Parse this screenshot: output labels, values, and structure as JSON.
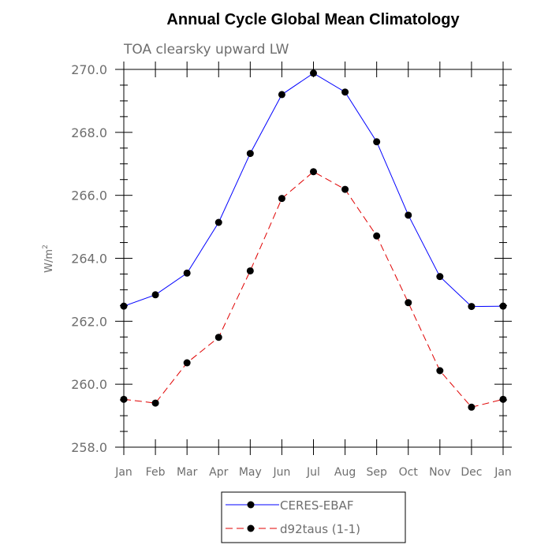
{
  "chart_data": {
    "type": "line",
    "title": "Annual Cycle Global Mean Climatology",
    "subtitle": "TOA clearsky upward LW",
    "ylabel": "W/m",
    "ylabel_superscript": "2",
    "xlabel": "",
    "categories": [
      "Jan",
      "Feb",
      "Mar",
      "Apr",
      "May",
      "Jun",
      "Jul",
      "Aug",
      "Sep",
      "Oct",
      "Nov",
      "Dec",
      "Jan"
    ],
    "ylim": [
      258.0,
      270.0
    ],
    "yticks": [
      "258.0",
      "260.0",
      "262.0",
      "264.0",
      "266.0",
      "268.0",
      "270.0"
    ],
    "grid": false,
    "legend_position": "bottom-center",
    "series": [
      {
        "name": "CERES-EBAF",
        "color": "#0000ff",
        "line_style": "solid",
        "marker": "filled-circle",
        "values": [
          262.48,
          262.84,
          263.53,
          265.14,
          267.33,
          269.2,
          269.88,
          269.28,
          267.7,
          265.37,
          263.42,
          262.47,
          262.48
        ]
      },
      {
        "name": "d92taus (1-1)",
        "color": "#e00000",
        "line_style": "dashed",
        "marker": "filled-circle",
        "values": [
          259.52,
          259.4,
          260.68,
          261.49,
          263.6,
          265.9,
          266.75,
          266.19,
          264.71,
          262.59,
          260.43,
          259.27,
          259.52
        ]
      }
    ]
  }
}
